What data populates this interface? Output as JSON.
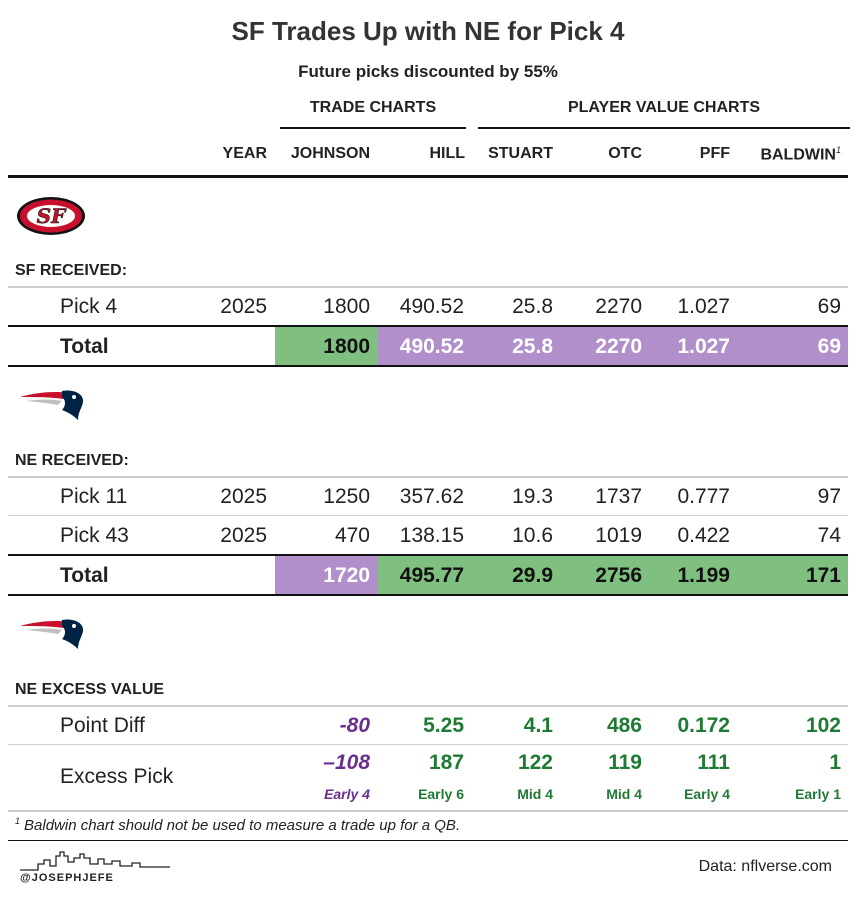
{
  "title": "SF Trades Up with NE for Pick 4",
  "subtitle": "Future picks discounted by 55%",
  "groups": {
    "trade_charts": "TRADE CHARTS",
    "player_value_charts": "PLAYER VALUE CHARTS"
  },
  "columns": {
    "year": "YEAR",
    "johnson": "JOHNSON",
    "hill": "HILL",
    "stuart": "STUART",
    "otc": "OTC",
    "pff": "PFF",
    "baldwin": "BALDWIN",
    "baldwin_note": "1"
  },
  "colors": {
    "green": "#7fbf7f",
    "purple": "#b08fcb",
    "green_text": "#1f7a34",
    "purple_text": "#6a2e8e"
  },
  "sf": {
    "logo_text": "SF",
    "section": "SF RECEIVED:",
    "rows": [
      {
        "label": "Pick 4",
        "year": "2025",
        "johnson": "1800",
        "hill": "490.52",
        "stuart": "25.8",
        "otc": "2270",
        "pff": "1.027",
        "baldwin": "69"
      }
    ],
    "total": {
      "label": "Total",
      "johnson": "1800",
      "hill": "490.52",
      "stuart": "25.8",
      "otc": "2270",
      "pff": "1.027",
      "baldwin": "69"
    }
  },
  "ne": {
    "section": "NE RECEIVED:",
    "rows": [
      {
        "label": "Pick 11",
        "year": "2025",
        "johnson": "1250",
        "hill": "357.62",
        "stuart": "19.3",
        "otc": "1737",
        "pff": "0.777",
        "baldwin": "97"
      },
      {
        "label": "Pick 43",
        "year": "2025",
        "johnson": "470",
        "hill": "138.15",
        "stuart": "10.6",
        "otc": "1019",
        "pff": "0.422",
        "baldwin": "74"
      }
    ],
    "total": {
      "label": "Total",
      "johnson": "1720",
      "hill": "495.77",
      "stuart": "29.9",
      "otc": "2756",
      "pff": "1.199",
      "baldwin": "171"
    }
  },
  "excess": {
    "section": "NE EXCESS VALUE",
    "point_diff": {
      "label": "Point Diff",
      "johnson": "-80",
      "hill": "5.25",
      "stuart": "4.1",
      "otc": "486",
      "pff": "0.172",
      "baldwin": "102"
    },
    "excess_pick": {
      "label": "Excess Pick",
      "johnson": "–108",
      "hill": "187",
      "stuart": "122",
      "otc": "119",
      "pff": "111",
      "baldwin": "1",
      "johnson_sub": "Early 4",
      "hill_sub": "Early 6",
      "stuart_sub": "Mid 4",
      "otc_sub": "Mid 4",
      "pff_sub": "Early 4",
      "baldwin_sub": "Early 1"
    }
  },
  "footnote_mark": "1",
  "footnote": "Baldwin chart should not be used to measure a trade up for a QB.",
  "credit": "@JOSEPHJEFE",
  "source": "Data: nflverse.com"
}
